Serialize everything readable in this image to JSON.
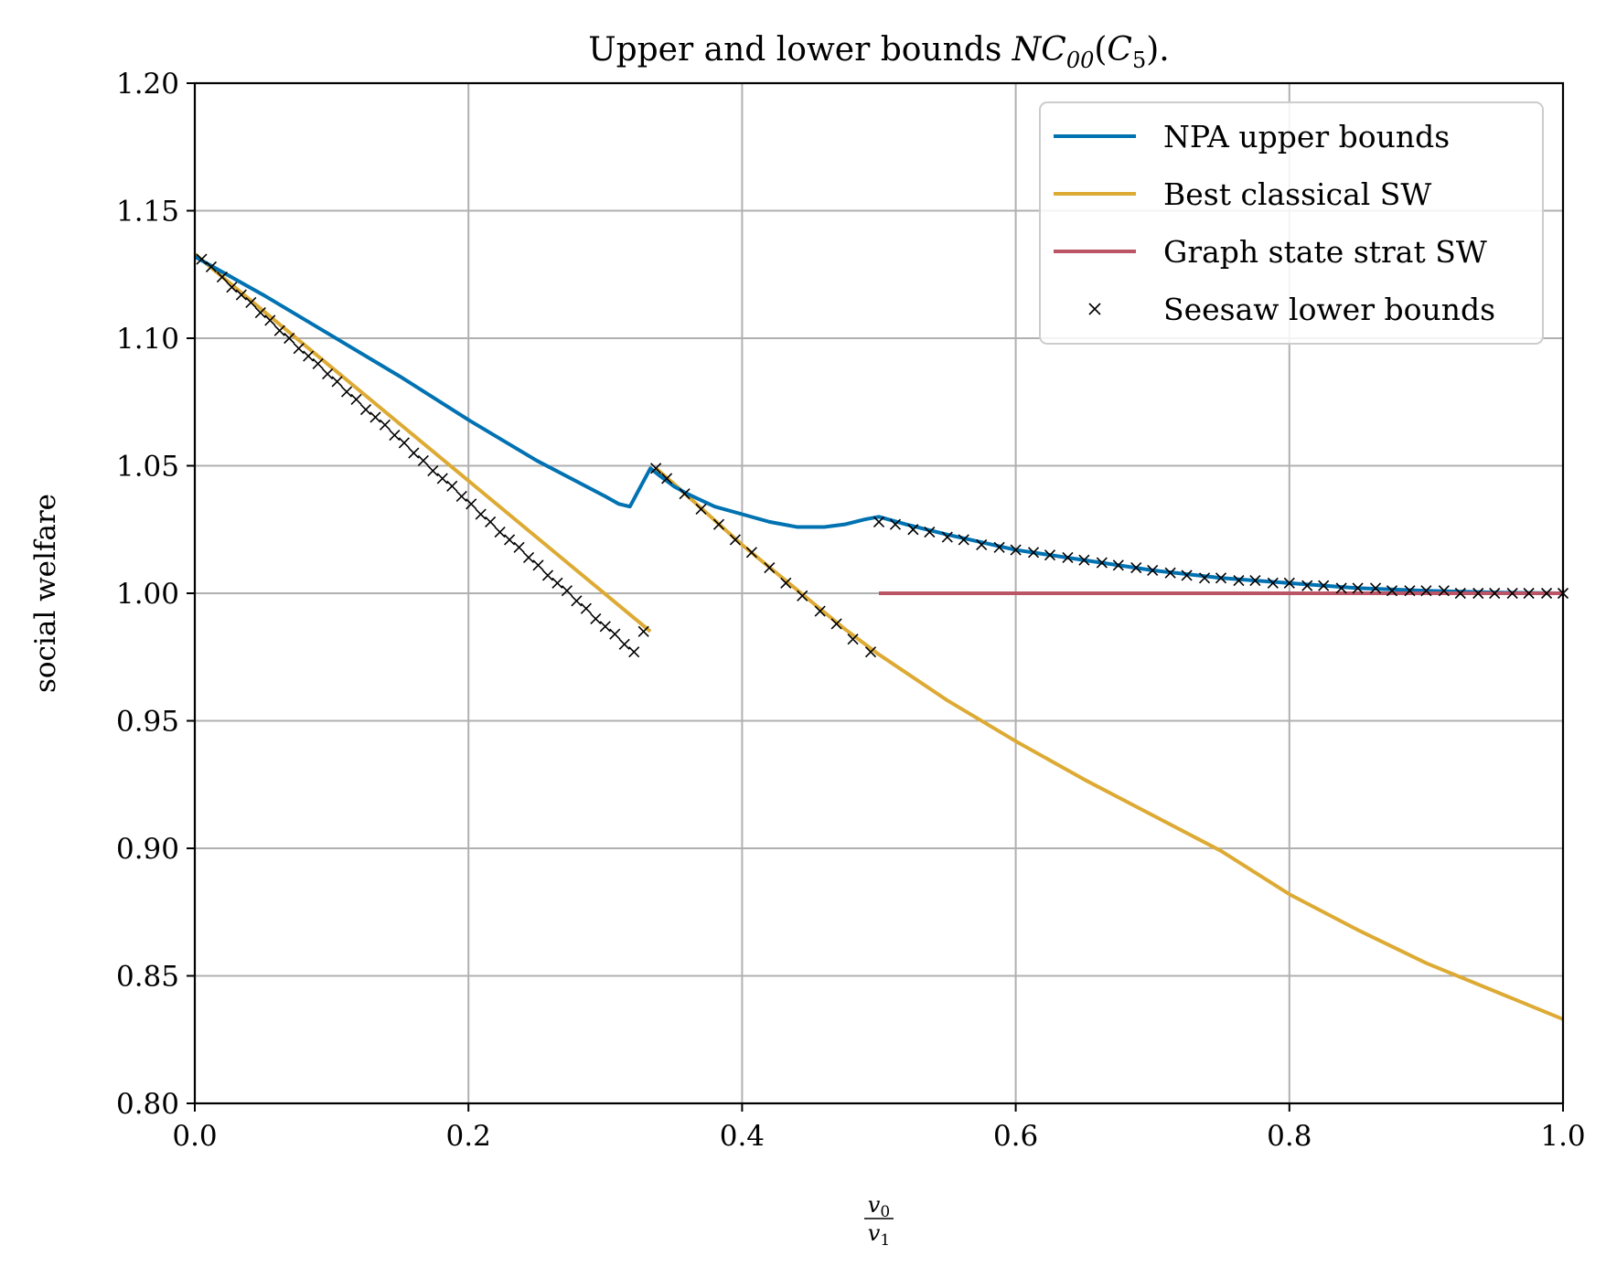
{
  "chart_data": {
    "type": "line",
    "title_text": "Upper and lower bounds ",
    "title_math": {
      "base": "NC",
      "sub": "00",
      "arg_base": "C",
      "arg_sub": "5",
      "suffix": "."
    },
    "ylabel": "social welfare",
    "xlabel_fraction": {
      "num_base": "v",
      "num_sub": "0",
      "den_base": "v",
      "den_sub": "1"
    },
    "xlim": [
      0,
      1
    ],
    "ylim": [
      0.8,
      1.2
    ],
    "x_ticks": [
      0.0,
      0.2,
      0.4,
      0.6,
      0.8,
      1.0
    ],
    "x_tick_labels": [
      "0.0",
      "0.2",
      "0.4",
      "0.6",
      "0.8",
      "1.0"
    ],
    "y_ticks": [
      0.8,
      0.85,
      0.9,
      0.95,
      1.0,
      1.05,
      1.1,
      1.15,
      1.2
    ],
    "y_tick_labels": [
      "0.80",
      "0.85",
      "0.90",
      "0.95",
      "1.00",
      "1.05",
      "1.10",
      "1.15",
      "1.20"
    ],
    "grid": true,
    "legend_position": "top-right",
    "series": [
      {
        "name": "NPA upper bounds",
        "kind": "line",
        "color": "#0072b2",
        "x": [
          0.0,
          0.05,
          0.1,
          0.15,
          0.2,
          0.25,
          0.3,
          0.31,
          0.318,
          0.325,
          0.333,
          0.34,
          0.35,
          0.36,
          0.38,
          0.4,
          0.42,
          0.44,
          0.45,
          0.46,
          0.475,
          0.49,
          0.5,
          0.52,
          0.55,
          0.6,
          0.65,
          0.7,
          0.75,
          0.8,
          0.85,
          0.9,
          0.95,
          1.0
        ],
        "y": [
          1.132,
          1.117,
          1.101,
          1.085,
          1.068,
          1.052,
          1.038,
          1.035,
          1.034,
          1.041,
          1.049,
          1.046,
          1.042,
          1.039,
          1.034,
          1.031,
          1.028,
          1.026,
          1.026,
          1.026,
          1.027,
          1.029,
          1.03,
          1.027,
          1.023,
          1.017,
          1.013,
          1.009,
          1.006,
          1.004,
          1.002,
          1.001,
          1.0003,
          1.0
        ]
      },
      {
        "name": "Best classical SW",
        "kind": "line",
        "color": "#ddaa33",
        "segments": [
          {
            "x": [
              0.0,
              0.333
            ],
            "y": [
              1.133,
              0.985
            ]
          },
          {
            "x": [
              0.337,
              0.35,
              0.375,
              0.4,
              0.425,
              0.45,
              0.475,
              0.5,
              0.55,
              0.6,
              0.65,
              0.7,
              0.75,
              0.8,
              0.85,
              0.9,
              0.95,
              1.0
            ],
            "y": [
              1.049,
              1.043,
              1.031,
              1.019,
              1.008,
              0.997,
              0.986,
              0.976,
              0.958,
              0.942,
              0.927,
              0.913,
              0.899,
              0.882,
              0.868,
              0.855,
              0.844,
              0.833
            ]
          }
        ]
      },
      {
        "name": "Graph state strat SW",
        "kind": "line",
        "color": "#bb5566",
        "x": [
          0.5,
          1.0
        ],
        "y": [
          1.0,
          1.0
        ]
      },
      {
        "name": "Seesaw lower bounds",
        "kind": "marker",
        "color": "#000000",
        "marker": "x",
        "x": [
          0.005,
          0.012,
          0.02,
          0.027,
          0.034,
          0.041,
          0.048,
          0.055,
          0.062,
          0.069,
          0.076,
          0.083,
          0.09,
          0.097,
          0.104,
          0.111,
          0.118,
          0.125,
          0.132,
          0.139,
          0.146,
          0.153,
          0.16,
          0.167,
          0.174,
          0.181,
          0.188,
          0.195,
          0.202,
          0.209,
          0.216,
          0.223,
          0.23,
          0.237,
          0.244,
          0.251,
          0.258,
          0.265,
          0.272,
          0.279,
          0.286,
          0.293,
          0.3,
          0.307,
          0.314,
          0.321,
          0.328,
          0.337,
          0.345,
          0.358,
          0.37,
          0.383,
          0.395,
          0.407,
          0.42,
          0.432,
          0.444,
          0.457,
          0.469,
          0.481,
          0.494,
          0.5,
          0.512,
          0.525,
          0.537,
          0.55,
          0.562,
          0.575,
          0.588,
          0.6,
          0.613,
          0.625,
          0.638,
          0.65,
          0.663,
          0.675,
          0.688,
          0.7,
          0.713,
          0.725,
          0.738,
          0.75,
          0.763,
          0.775,
          0.788,
          0.8,
          0.813,
          0.825,
          0.838,
          0.85,
          0.863,
          0.875,
          0.888,
          0.9,
          0.913,
          0.925,
          0.938,
          0.95,
          0.963,
          0.975,
          0.988,
          1.0
        ],
        "y": [
          1.131,
          1.128,
          1.124,
          1.12,
          1.117,
          1.114,
          1.11,
          1.107,
          1.103,
          1.1,
          1.096,
          1.093,
          1.09,
          1.086,
          1.083,
          1.079,
          1.076,
          1.072,
          1.069,
          1.066,
          1.062,
          1.059,
          1.055,
          1.052,
          1.048,
          1.045,
          1.042,
          1.038,
          1.035,
          1.031,
          1.028,
          1.024,
          1.021,
          1.018,
          1.014,
          1.011,
          1.007,
          1.004,
          1.001,
          0.997,
          0.994,
          0.99,
          0.987,
          0.984,
          0.98,
          0.977,
          0.985,
          1.049,
          1.045,
          1.039,
          1.033,
          1.027,
          1.021,
          1.016,
          1.01,
          1.004,
          0.999,
          0.993,
          0.988,
          0.982,
          0.977,
          1.028,
          1.027,
          1.025,
          1.024,
          1.022,
          1.021,
          1.019,
          1.018,
          1.017,
          1.016,
          1.015,
          1.014,
          1.013,
          1.012,
          1.011,
          1.01,
          1.009,
          1.008,
          1.007,
          1.006,
          1.006,
          1.005,
          1.005,
          1.004,
          1.004,
          1.003,
          1.003,
          1.002,
          1.002,
          1.002,
          1.001,
          1.001,
          1.001,
          1.001,
          1.0,
          1.0,
          1.0,
          1.0,
          1.0,
          1.0,
          1.0
        ]
      }
    ]
  }
}
